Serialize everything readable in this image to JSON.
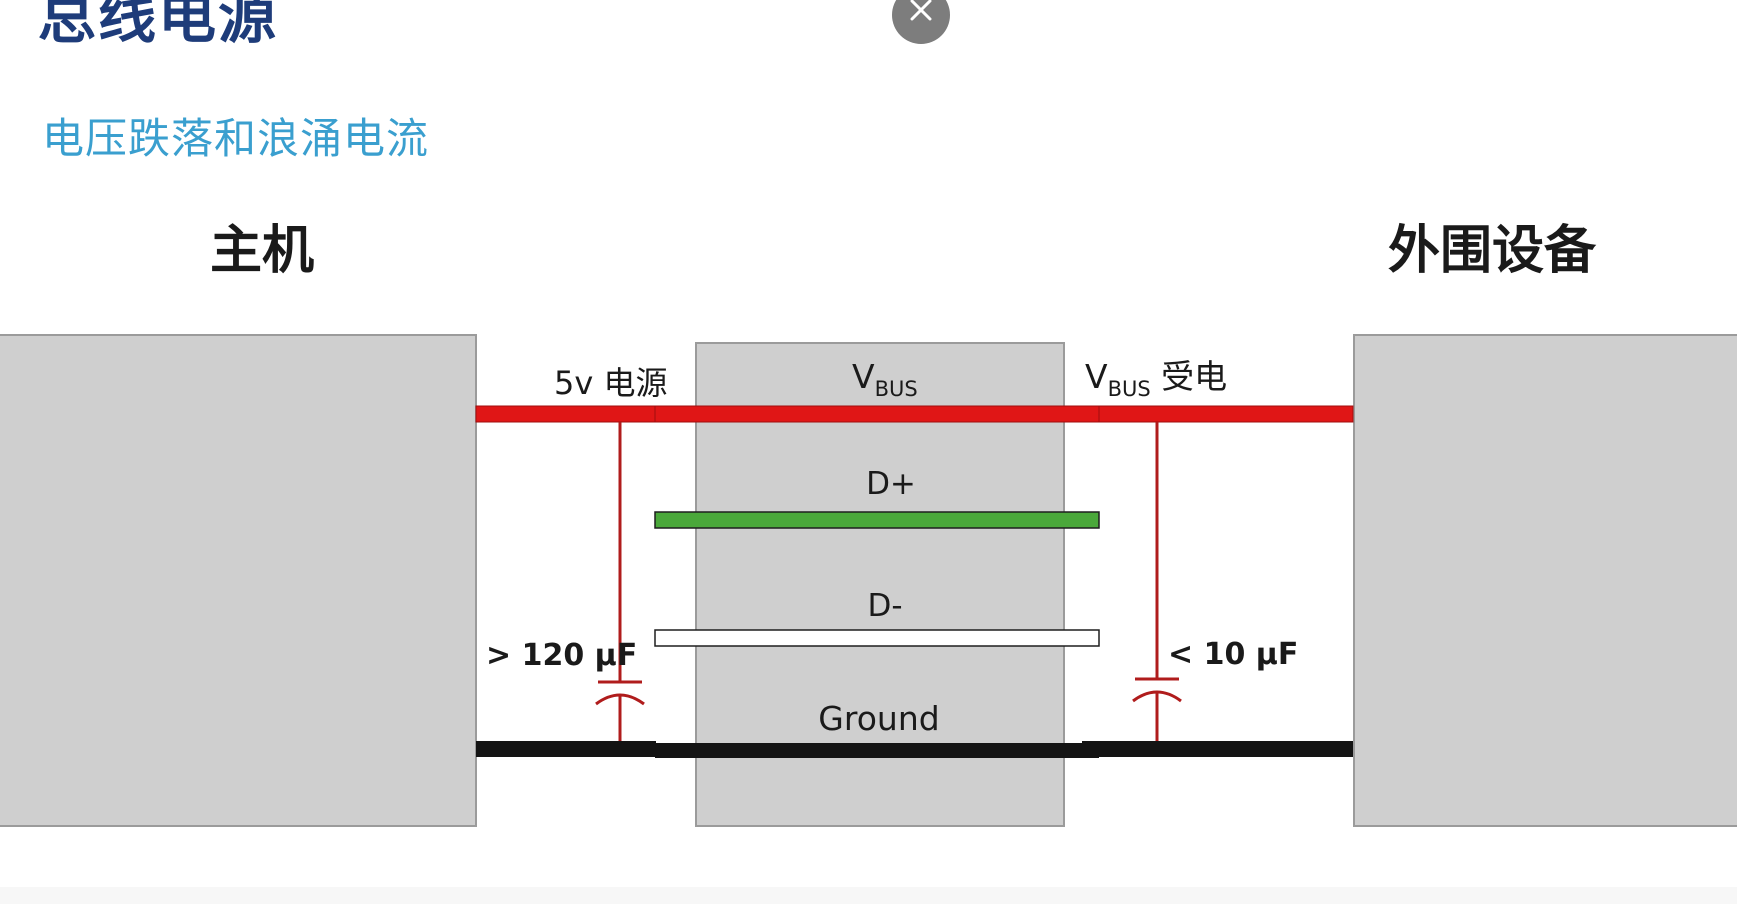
{
  "slide": {
    "title": "总线电源",
    "subtitle": "电压跌落和浪涌电流"
  },
  "close_icon": "close-icon",
  "diagram": {
    "host_label": "主机",
    "device_label": "外围设备",
    "power_source_label": "5v 电源",
    "vbus_label": "V",
    "vbus_subscript": "BUS",
    "vbus_receive_label": "V",
    "vbus_receive_subscript": "BUS",
    "vbus_receive_suffix": " 受电",
    "dplus_label": "D+",
    "dminus_label": "D-",
    "ground_label": "Ground",
    "host_cap_label": "> 120 µF",
    "device_cap_label": "< 10 µF"
  },
  "colors": {
    "title": "#1e3c7a",
    "subtitle": "#3a9fcf",
    "vbus_line": "#e01616",
    "dplus_line": "#4aa83a",
    "dminus_line": "#ffffff",
    "ground_line": "#141414",
    "capacitor": "#b01c1c",
    "box_fill": "#cfcfcf"
  }
}
